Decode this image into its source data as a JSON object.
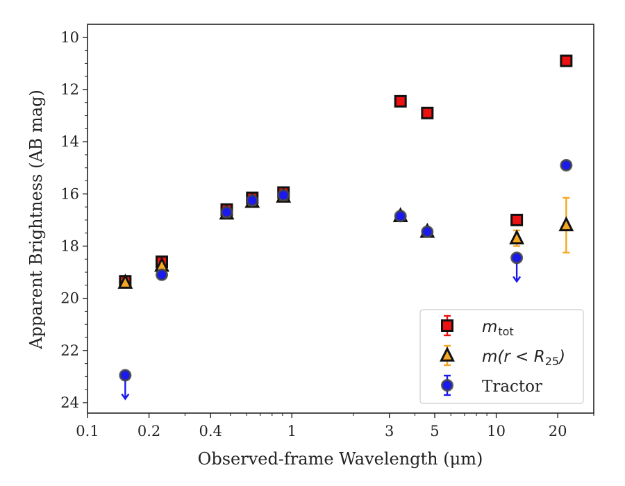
{
  "chart_data": {
    "type": "scatter",
    "xlabel": "Observed-frame Wavelength (μm)",
    "ylabel": "Apparent Brightness (AB mag)",
    "x_scale": "log",
    "xlim": [
      0.1,
      30
    ],
    "ylim": [
      24.4,
      9.5
    ],
    "y_inverted": true,
    "x_tick_labels": [
      "0.1",
      "0.2",
      "0.4",
      "1",
      "3",
      "5",
      "10",
      "20"
    ],
    "x_tick_values": [
      0.1,
      0.2,
      0.4,
      1,
      3,
      5,
      10,
      20
    ],
    "y_ticks": [
      10,
      12,
      14,
      16,
      18,
      20,
      22,
      24
    ],
    "grid": false,
    "legend_position": "bottom-right",
    "series": [
      {
        "name": "m_tot",
        "marker": "square",
        "color": "#ee1111",
        "edge_color": "#111111",
        "points": [
          {
            "x": 0.153,
            "y": 19.35,
            "err": 0.1
          },
          {
            "x": 0.231,
            "y": 18.6,
            "err": 0.1
          },
          {
            "x": 0.48,
            "y": 16.6,
            "err": 0.1
          },
          {
            "x": 0.64,
            "y": 16.15,
            "err": 0.1
          },
          {
            "x": 0.91,
            "y": 15.95,
            "err": 0.1
          },
          {
            "x": 3.4,
            "y": 12.45,
            "err": 0.05
          },
          {
            "x": 4.6,
            "y": 12.9,
            "err": 0.05
          },
          {
            "x": 12.6,
            "y": 17.0,
            "err": 0.05
          },
          {
            "x": 22.0,
            "y": 10.9,
            "err": 0.05
          }
        ]
      },
      {
        "name": "m(r<R25)",
        "marker": "triangle",
        "color": "#f5a623",
        "edge_color": "#111111",
        "points": [
          {
            "x": 0.153,
            "y": 19.4,
            "err": 0.1
          },
          {
            "x": 0.231,
            "y": 18.75,
            "err": 0.1
          },
          {
            "x": 0.48,
            "y": 16.75,
            "err": 0.1
          },
          {
            "x": 0.64,
            "y": 16.3,
            "err": 0.1
          },
          {
            "x": 0.91,
            "y": 16.1,
            "err": 0.1
          },
          {
            "x": 3.4,
            "y": 16.85,
            "err": 0.1
          },
          {
            "x": 4.6,
            "y": 17.45,
            "err": 0.1
          },
          {
            "x": 12.6,
            "y": 17.7,
            "err": 0.3
          },
          {
            "x": 22.0,
            "y": 17.2,
            "err": 1.05
          }
        ]
      },
      {
        "name": "Tractor",
        "marker": "circle",
        "color": "#1a1aee",
        "edge_color": "#444444",
        "points": [
          {
            "x": 0.153,
            "y": 22.95,
            "upper_limit": true
          },
          {
            "x": 0.231,
            "y": 19.1,
            "err": 0.05
          },
          {
            "x": 0.48,
            "y": 16.7,
            "err": 0.05
          },
          {
            "x": 0.64,
            "y": 16.25,
            "err": 0.05
          },
          {
            "x": 0.91,
            "y": 16.05,
            "err": 0.05
          },
          {
            "x": 3.4,
            "y": 16.85,
            "err": 0.05
          },
          {
            "x": 4.6,
            "y": 17.45,
            "err": 0.05
          },
          {
            "x": 12.6,
            "y": 18.45,
            "upper_limit": true
          },
          {
            "x": 22.0,
            "y": 14.9,
            "err": 0.05
          }
        ]
      }
    ],
    "legend": [
      {
        "series": "m_tot",
        "base": "m",
        "sub": "tot"
      },
      {
        "series": "m(r<R25)",
        "text": "m(r < R",
        "sub": "25",
        "tail": ")"
      },
      {
        "series": "Tractor",
        "text": "Tractor"
      }
    ]
  }
}
